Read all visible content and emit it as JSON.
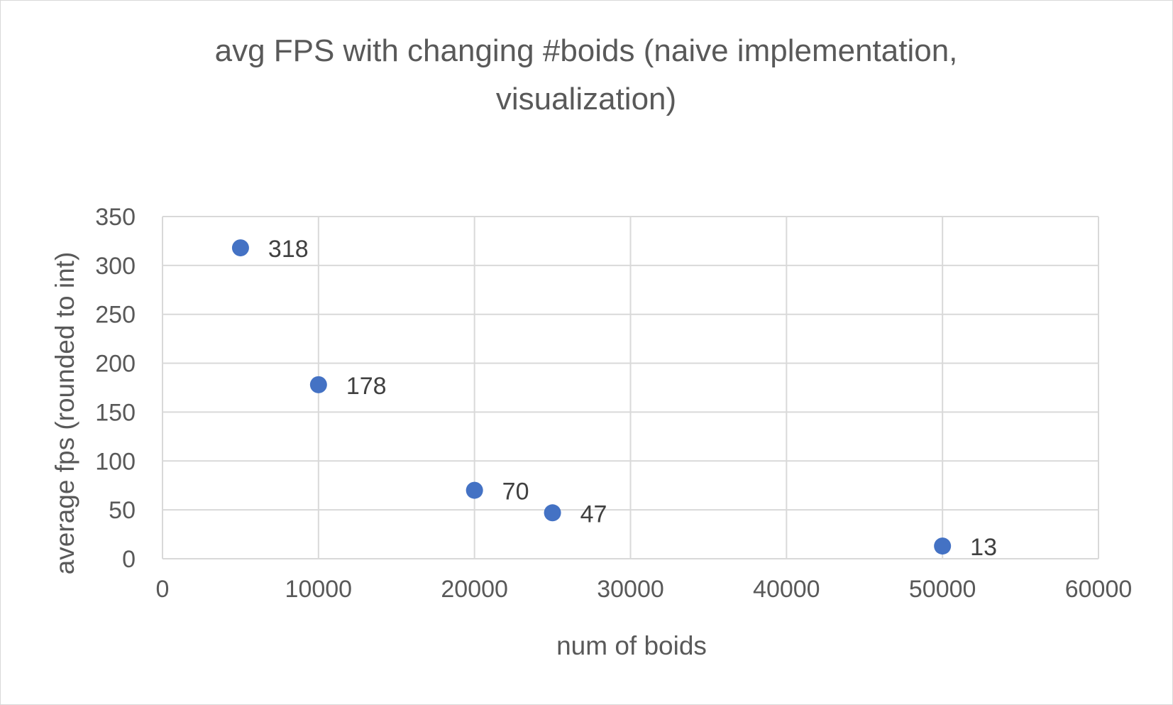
{
  "chart_data": {
    "type": "scatter",
    "title": "avg FPS with changing #boids (naive implementation, visualization)",
    "title_lines": [
      "avg FPS with changing #boids (naive implementation,",
      "visualization)"
    ],
    "xlabel": "num of boids",
    "ylabel": "average fps (rounded to int)",
    "xlim": [
      0,
      60000
    ],
    "ylim": [
      0,
      350
    ],
    "x_ticks": [
      0,
      10000,
      20000,
      30000,
      40000,
      50000,
      60000
    ],
    "y_ticks": [
      0,
      50,
      100,
      150,
      200,
      250,
      300,
      350
    ],
    "grid": true,
    "legend": "none",
    "marker_color": "#4472c4",
    "series": [
      {
        "x": [
          5000,
          10000,
          20000,
          25000,
          50000
        ],
        "y": [
          318,
          178,
          70,
          47,
          13
        ],
        "labels": [
          "318",
          "178",
          "70",
          "47",
          "13"
        ]
      }
    ]
  }
}
